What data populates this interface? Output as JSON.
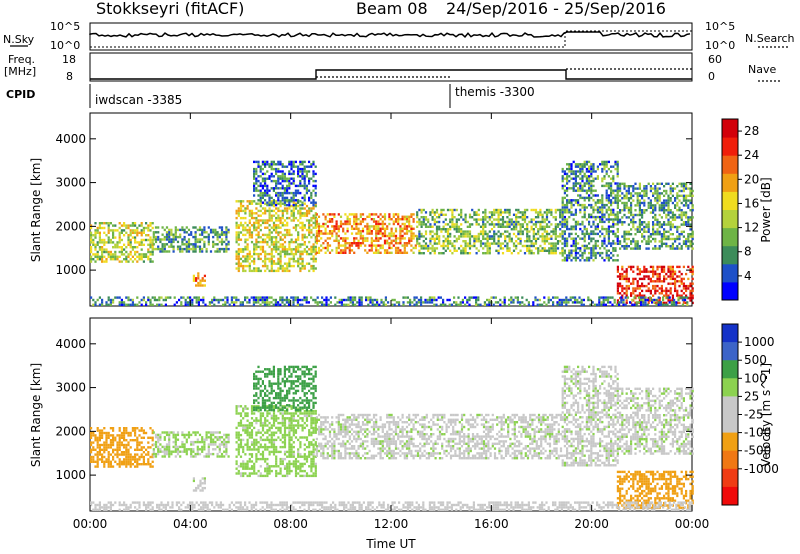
{
  "header": {
    "station": "Stokkseyri (fitACF)",
    "beam": "Beam 08",
    "dates": "24/Sep/2016 - 25/Sep/2016"
  },
  "summary_labels": {
    "nsky": "N.Sky",
    "nsearch": "N.Search",
    "freq": "Freq.",
    "freq_unit": "[MHz]",
    "nave": "Nave",
    "cpid": "CPID",
    "nsky_scale_top": "10^5",
    "nsky_scale_bottom": "10^0",
    "nsearch_scale_top": "10^5",
    "nsearch_scale_bottom": "10^0",
    "freq_scale_top": "18",
    "freq_scale_bottom": "8",
    "nave_scale_top": "60",
    "nave_scale_bottom": "0"
  },
  "cpid_segments": [
    {
      "label": "iwdscan -3385",
      "start": "00:00"
    },
    {
      "label": "themis -3300",
      "start": "14:25"
    }
  ],
  "chart_data": [
    {
      "type": "heatmap",
      "panel": "power",
      "xlabel": "Time UT",
      "ylabel": "Slant Range [km]",
      "x_ticks": [
        "00:00",
        "04:00",
        "08:00",
        "12:00",
        "16:00",
        "20:00",
        "00:00"
      ],
      "xlim_hours": [
        0,
        24
      ],
      "y_ticks": [
        1000,
        2000,
        3000,
        4000
      ],
      "ylim": [
        180,
        4590
      ],
      "colorbar": {
        "label": "Power [dB]",
        "ticks": [
          4,
          8,
          12,
          16,
          20,
          24,
          28
        ],
        "range": [
          0,
          30
        ],
        "colors": [
          "#0000ff",
          "#1e50c8",
          "#3c8c5a",
          "#6eb446",
          "#b4d23c",
          "#f0dc1e",
          "#f0a014",
          "#f06414",
          "#f01e0a",
          "#d2000a"
        ]
      },
      "echo_regions": [
        {
          "t0": 0.0,
          "t1": 2.5,
          "r0": 1200,
          "r1": 2100,
          "level": 14
        },
        {
          "t0": 2.5,
          "t1": 5.5,
          "r0": 1400,
          "r1": 2000,
          "level": 9
        },
        {
          "t0": 4.1,
          "t1": 4.6,
          "r0": 650,
          "r1": 950,
          "level": 20
        },
        {
          "t0": 5.8,
          "t1": 9.0,
          "r0": 1000,
          "r1": 2600,
          "level": 15
        },
        {
          "t0": 6.5,
          "t1": 9.0,
          "r0": 2500,
          "r1": 3500,
          "level": 6
        },
        {
          "t0": 9.0,
          "t1": 13.0,
          "r0": 1400,
          "r1": 2300,
          "level": 20
        },
        {
          "t0": 13.0,
          "t1": 18.8,
          "r0": 1400,
          "r1": 2400,
          "level": 11
        },
        {
          "t0": 18.8,
          "t1": 21.0,
          "r0": 1200,
          "r1": 3500,
          "level": 8
        },
        {
          "t0": 21.0,
          "t1": 24.0,
          "r0": 1500,
          "r1": 3000,
          "level": 9
        },
        {
          "t0": 21.0,
          "t1": 24.0,
          "r0": 250,
          "r1": 1100,
          "level": 26
        },
        {
          "t0": 0.0,
          "t1": 24.0,
          "r0": 200,
          "r1": 400,
          "level": 7
        }
      ]
    },
    {
      "type": "heatmap",
      "panel": "velocity",
      "xlabel": "Time UT",
      "ylabel": "Slant Range [km]",
      "x_ticks": [
        "00:00",
        "04:00",
        "08:00",
        "12:00",
        "16:00",
        "20:00",
        "00:00"
      ],
      "xlim_hours": [
        0,
        24
      ],
      "y_ticks": [
        1000,
        2000,
        3000,
        4000
      ],
      "ylim": [
        180,
        4590
      ],
      "colorbar": {
        "label": "Velocity [m s^-1]",
        "ticks": [
          "1000",
          "500",
          "100",
          "25",
          "-25",
          "-100",
          "-500",
          "-1000"
        ],
        "colors": [
          "#1432c8",
          "#3c64c8",
          "#3ca046",
          "#8cd250",
          "#c8c8c8",
          "#c8c8c8",
          "#f0a014",
          "#f07814",
          "#f03c14",
          "#f00a0a"
        ]
      },
      "echo_regions": [
        {
          "t0": 0.0,
          "t1": 2.5,
          "r0": 1200,
          "r1": 2100,
          "velocity": -300
        },
        {
          "t0": 2.5,
          "t1": 5.5,
          "r0": 1400,
          "r1": 2000,
          "velocity": 40
        },
        {
          "t0": 4.1,
          "t1": 4.6,
          "r0": 650,
          "r1": 950,
          "velocity": 0
        },
        {
          "t0": 5.8,
          "t1": 9.0,
          "r0": 1000,
          "r1": 2600,
          "velocity": 60
        },
        {
          "t0": 6.5,
          "t1": 9.0,
          "r0": 2500,
          "r1": 3500,
          "velocity": 200
        },
        {
          "t0": 9.0,
          "t1": 18.8,
          "r0": 1400,
          "r1": 2400,
          "velocity": 0
        },
        {
          "t0": 18.8,
          "t1": 21.0,
          "r0": 1200,
          "r1": 3500,
          "velocity": 0
        },
        {
          "t0": 21.0,
          "t1": 24.0,
          "r0": 1500,
          "r1": 3000,
          "velocity": 0
        },
        {
          "t0": 21.0,
          "t1": 24.0,
          "r0": 250,
          "r1": 1100,
          "velocity": -400
        },
        {
          "t0": 0.0,
          "t1": 24.0,
          "r0": 200,
          "r1": 400,
          "velocity": -60
        }
      ]
    }
  ]
}
